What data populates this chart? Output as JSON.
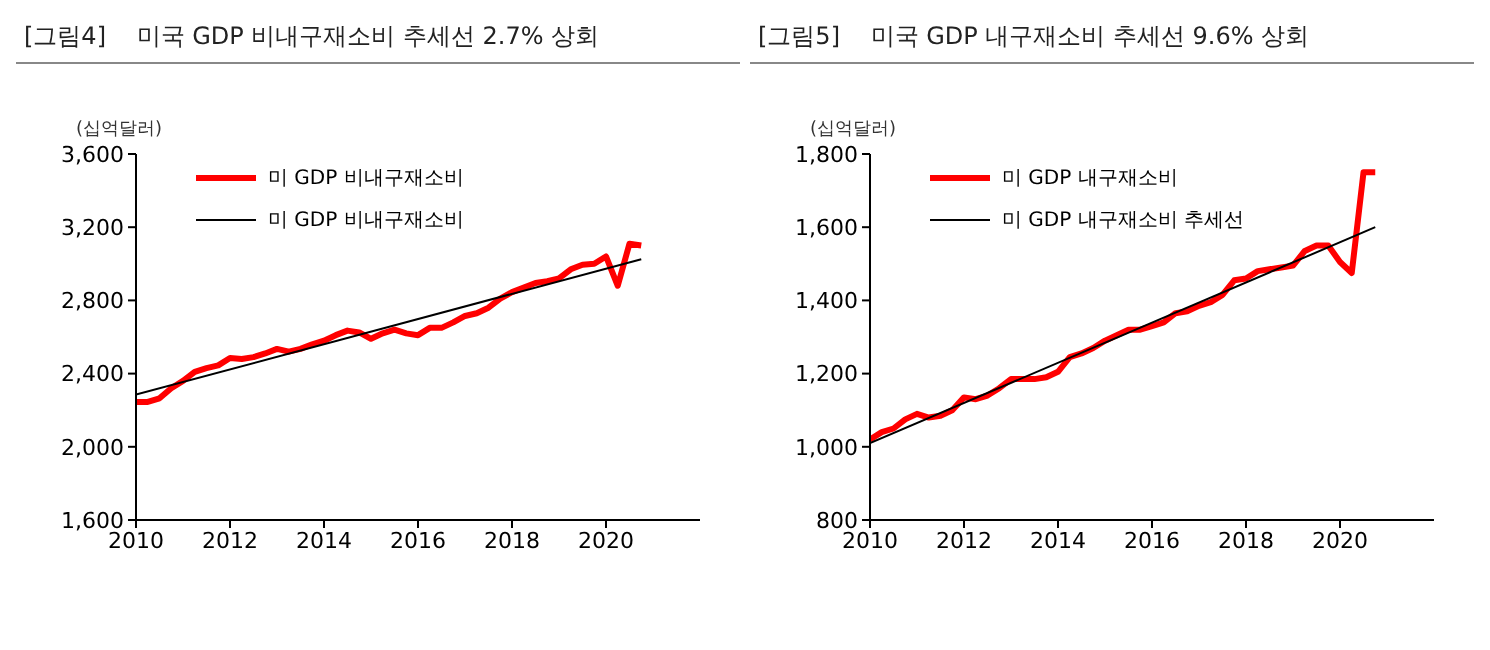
{
  "chart_data": [
    {
      "type": "line",
      "title": "[그림4]    미국 GDP 비내구재소비 추세선 2.7% 상회",
      "ylabel": "(십억달러)",
      "xlim": [
        2010,
        2022
      ],
      "xticks": [
        2010,
        2012,
        2014,
        2016,
        2018,
        2020
      ],
      "ylim": [
        1600,
        3600
      ],
      "yticks": [
        {
          "value": 1600,
          "label": "1,600"
        },
        {
          "value": 2000,
          "label": "2,000"
        },
        {
          "value": 2400,
          "label": "2,400"
        },
        {
          "value": 2800,
          "label": "2,800"
        },
        {
          "value": 3200,
          "label": "3,200"
        },
        {
          "value": 3600,
          "label": "3,600"
        }
      ],
      "grid": false,
      "legend": "top left",
      "marker": "none",
      "series": [
        {
          "name": "미 GDP 비내구재소비",
          "color": "#ff0000",
          "x": [
            2010,
            2010.25,
            2010.5,
            2010.75,
            2011,
            2011.25,
            2011.5,
            2011.75,
            2012,
            2012.25,
            2012.5,
            2012.75,
            2013,
            2013.25,
            2013.5,
            2013.75,
            2014,
            2014.25,
            2014.5,
            2014.75,
            2015,
            2015.25,
            2015.5,
            2015.75,
            2016,
            2016.25,
            2016.5,
            2016.75,
            2017,
            2017.25,
            2017.5,
            2017.75,
            2018,
            2018.25,
            2018.5,
            2018.75,
            2019,
            2019.25,
            2019.5,
            2019.75,
            2020,
            2020.25,
            2020.5,
            2020.75
          ],
          "values": [
            2245,
            2245,
            2265,
            2320,
            2360,
            2410,
            2430,
            2445,
            2485,
            2480,
            2490,
            2510,
            2535,
            2520,
            2535,
            2560,
            2580,
            2610,
            2635,
            2625,
            2590,
            2620,
            2640,
            2620,
            2610,
            2650,
            2650,
            2680,
            2715,
            2730,
            2760,
            2810,
            2845,
            2870,
            2895,
            2905,
            2920,
            2970,
            2995,
            3000,
            3040,
            2880,
            3110,
            3100
          ]
        },
        {
          "name": "미 GDP 비내구재소비",
          "color": "#000000",
          "x": [
            2010,
            2020.75
          ],
          "values": [
            2285,
            3025
          ]
        }
      ]
    },
    {
      "type": "line",
      "title": "[그림5]    미국 GDP 내구재소비 추세선 9.6% 상회",
      "ylabel": "(십억달러)",
      "xlim": [
        2010,
        2022
      ],
      "xticks": [
        2010,
        2012,
        2014,
        2016,
        2018,
        2020
      ],
      "ylim": [
        800,
        1800
      ],
      "yticks": [
        800,
        {
          "value": 1000,
          "label": "1,000"
        },
        {
          "value": 1200,
          "label": "1,200"
        },
        {
          "value": 1400,
          "label": "1,400"
        },
        {
          "value": 1600,
          "label": "1,600"
        },
        {
          "value": 1800,
          "label": "1,800"
        }
      ],
      "grid": false,
      "legend": "top left",
      "marker": "none",
      "series": [
        {
          "name": "미 GDP 내구재소비",
          "color": "#ff0000",
          "x": [
            2010,
            2010.25,
            2010.5,
            2010.75,
            2011,
            2011.25,
            2011.5,
            2011.75,
            2012,
            2012.25,
            2012.5,
            2012.75,
            2013,
            2013.25,
            2013.5,
            2013.75,
            2014,
            2014.25,
            2014.5,
            2014.75,
            2015,
            2015.25,
            2015.5,
            2015.75,
            2016,
            2016.25,
            2016.5,
            2016.75,
            2017,
            2017.25,
            2017.5,
            2017.75,
            2018,
            2018.25,
            2018.5,
            2018.75,
            2019,
            2019.25,
            2019.5,
            2019.75,
            2020,
            2020.25,
            2020.5,
            2020.75
          ],
          "values": [
            1020,
            1040,
            1050,
            1075,
            1090,
            1080,
            1085,
            1100,
            1135,
            1130,
            1140,
            1160,
            1185,
            1185,
            1185,
            1190,
            1205,
            1245,
            1255,
            1270,
            1290,
            1305,
            1320,
            1320,
            1330,
            1340,
            1365,
            1370,
            1385,
            1395,
            1415,
            1455,
            1460,
            1480,
            1485,
            1490,
            1495,
            1535,
            1550,
            1550,
            1505,
            1475,
            1750,
            1750
          ]
        },
        {
          "name": "미 GDP 내구재소비  추세선",
          "color": "#000000",
          "x": [
            2010,
            2020.75
          ],
          "values": [
            1010,
            1600
          ]
        }
      ]
    }
  ]
}
